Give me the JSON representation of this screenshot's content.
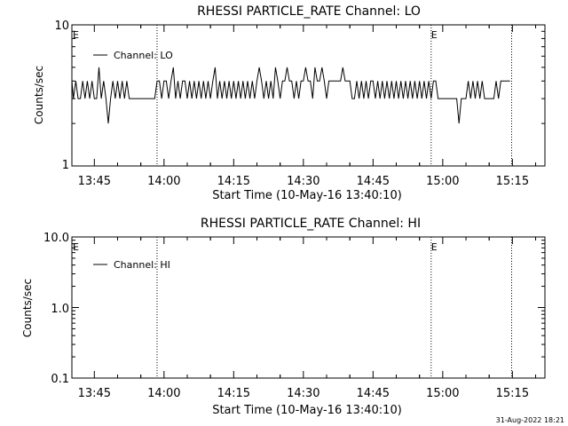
{
  "footer": {
    "timestamp": "31-Aug-2022 18:21"
  },
  "chart_data": [
    {
      "type": "line",
      "title": "RHESSI PARTICLE_RATE Channel: LO",
      "xlabel": "Start Time (10-May-16 13:40:10)",
      "ylabel": "Counts/sec",
      "yscale": "log",
      "ylim": [
        1,
        10
      ],
      "yticks": [
        "1",
        "10"
      ],
      "xlim": [
        "13:40:10",
        "15:22"
      ],
      "xticks": [
        "13:45",
        "14:00",
        "14:15",
        "14:30",
        "14:45",
        "15:00",
        "15:15"
      ],
      "legend": {
        "placement": "top-left",
        "entries": [
          "Channel: LO"
        ]
      },
      "markers": [
        {
          "time": "13:40:10",
          "label": "E",
          "line": false
        },
        {
          "time": "13:58:30",
          "label": "",
          "line": true
        },
        {
          "time": "14:57:30",
          "label": "E",
          "line": true
        },
        {
          "time": "15:14:50",
          "label": "",
          "line": true
        }
      ],
      "series": [
        {
          "name": "Channel: LO",
          "t": [
            "13:40:10",
            "13:40:30",
            "13:41:00",
            "13:41:30",
            "13:42:00",
            "13:42:30",
            "13:43:00",
            "13:43:30",
            "13:44:00",
            "13:44:30",
            "13:45:00",
            "13:45:30",
            "13:46:00",
            "13:46:30",
            "13:47:00",
            "13:47:30",
            "13:48:00",
            "13:48:30",
            "13:49:00",
            "13:49:30",
            "13:50:00",
            "13:50:30",
            "13:51:00",
            "13:51:30",
            "13:52:00",
            "13:52:30",
            "13:53:00",
            "13:53:30",
            "13:54:00",
            "13:55:00",
            "13:56:00",
            "13:57:00",
            "13:58:00",
            "13:58:30",
            "13:59:00",
            "13:59:30",
            "14:00:00",
            "14:00:30",
            "14:01:00",
            "14:01:30",
            "14:02:00",
            "14:02:30",
            "14:03:00",
            "14:03:30",
            "14:04:00",
            "14:04:30",
            "14:05:00",
            "14:05:30",
            "14:06:00",
            "14:06:30",
            "14:07:00",
            "14:07:30",
            "14:08:00",
            "14:08:30",
            "14:09:00",
            "14:09:30",
            "14:10:00",
            "14:10:30",
            "14:11:00",
            "14:11:30",
            "14:12:00",
            "14:12:30",
            "14:13:00",
            "14:13:30",
            "14:14:00",
            "14:14:30",
            "14:15:00",
            "14:15:30",
            "14:16:00",
            "14:16:30",
            "14:17:00",
            "14:17:30",
            "14:18:00",
            "14:18:30",
            "14:19:00",
            "14:19:30",
            "14:20:00",
            "14:20:30",
            "14:21:00",
            "14:21:30",
            "14:22:00",
            "14:22:30",
            "14:23:00",
            "14:23:30",
            "14:24:00",
            "14:24:30",
            "14:25:00",
            "14:25:30",
            "14:26:00",
            "14:26:30",
            "14:27:00",
            "14:27:30",
            "14:28:00",
            "14:28:30",
            "14:29:00",
            "14:29:30",
            "14:30:00",
            "14:30:30",
            "14:31:00",
            "14:31:30",
            "14:32:00",
            "14:32:30",
            "14:33:00",
            "14:33:30",
            "14:34:00",
            "14:34:30",
            "14:35:00",
            "14:35:30",
            "14:36:00",
            "14:36:30",
            "14:37:00",
            "14:37:30",
            "14:38:00",
            "14:38:30",
            "14:39:00",
            "14:39:30",
            "14:40:00",
            "14:40:30",
            "14:41:00",
            "14:41:30",
            "14:42:00",
            "14:42:30",
            "14:43:00",
            "14:43:30",
            "14:44:00",
            "14:44:30",
            "14:45:00",
            "14:45:30",
            "14:46:00",
            "14:46:30",
            "14:47:00",
            "14:47:30",
            "14:48:00",
            "14:48:30",
            "14:49:00",
            "14:49:30",
            "14:50:00",
            "14:50:30",
            "14:51:00",
            "14:51:30",
            "14:52:00",
            "14:52:30",
            "14:53:00",
            "14:53:30",
            "14:54:00",
            "14:54:30",
            "14:55:00",
            "14:55:30",
            "14:56:00",
            "14:56:30",
            "14:57:00",
            "14:57:30",
            "14:58:00",
            "14:58:30",
            "14:59:00",
            "14:59:30",
            "15:00:00",
            "15:00:30",
            "15:01:00",
            "15:01:30",
            "15:02:00",
            "15:02:30",
            "15:03:00",
            "15:03:30",
            "15:04:00",
            "15:04:30",
            "15:05:00",
            "15:05:30",
            "15:06:00",
            "15:06:30",
            "15:07:00",
            "15:07:30",
            "15:08:00",
            "15:08:30",
            "15:09:00",
            "15:09:30",
            "15:10:00",
            "15:10:30",
            "15:11:00",
            "15:11:30",
            "15:12:00",
            "15:12:30",
            "15:13:00",
            "15:13:30",
            "15:14:00",
            "15:14:30"
          ],
          "values": [
            4,
            3,
            4,
            3,
            3,
            4,
            3,
            4,
            3,
            4,
            3,
            3,
            5,
            3,
            4,
            3,
            2,
            3,
            4,
            3,
            4,
            3,
            4,
            3,
            4,
            3,
            3,
            3,
            3,
            3,
            3,
            3,
            3,
            4,
            4,
            3,
            4,
            4,
            3,
            4,
            5,
            3,
            4,
            3,
            4,
            4,
            3,
            4,
            3,
            4,
            3,
            4,
            3,
            4,
            3,
            4,
            3,
            4,
            5,
            3,
            4,
            3,
            4,
            3,
            4,
            3,
            4,
            3,
            4,
            3,
            4,
            3,
            4,
            3,
            4,
            3,
            4,
            5,
            4,
            3,
            4,
            3,
            4,
            3,
            5,
            4,
            3,
            4,
            4,
            5,
            4,
            4,
            3,
            4,
            3,
            4,
            4,
            5,
            4,
            4,
            3,
            5,
            4,
            4,
            5,
            4,
            3,
            4,
            4,
            4,
            4,
            4,
            4,
            5,
            4,
            4,
            4,
            3,
            3,
            4,
            3,
            4,
            3,
            4,
            3,
            4,
            4,
            3,
            4,
            3,
            4,
            3,
            4,
            3,
            4,
            3,
            4,
            3,
            4,
            3,
            4,
            3,
            4,
            3,
            4,
            3,
            4,
            3,
            4,
            3,
            4,
            3,
            4,
            4,
            3,
            3,
            3,
            3,
            3,
            3,
            3,
            3,
            3,
            2,
            3,
            3,
            3,
            4,
            3,
            4,
            3,
            4,
            3,
            4,
            3,
            3,
            3,
            3,
            3,
            4,
            3,
            4,
            4,
            4,
            4,
            4
          ]
        }
      ]
    },
    {
      "type": "line",
      "title": "RHESSI PARTICLE_RATE Channel: HI",
      "xlabel": "Start Time (10-May-16 13:40:10)",
      "ylabel": "Counts/sec",
      "yscale": "log",
      "ylim": [
        0.1,
        10
      ],
      "yticks": [
        "0.1",
        "1.0",
        "10.0"
      ],
      "xlim": [
        "13:40:10",
        "15:22"
      ],
      "xticks": [
        "13:45",
        "14:00",
        "14:15",
        "14:30",
        "14:45",
        "15:00",
        "15:15"
      ],
      "legend": {
        "placement": "top-left",
        "entries": [
          "Channel: HI"
        ]
      },
      "markers": [
        {
          "time": "13:40:10",
          "label": "E",
          "line": false
        },
        {
          "time": "13:58:30",
          "label": "",
          "line": true
        },
        {
          "time": "14:57:30",
          "label": "E",
          "line": true
        },
        {
          "time": "15:14:50",
          "label": "",
          "line": true
        }
      ],
      "series": [
        {
          "name": "Channel: HI",
          "t": [],
          "values": []
        }
      ]
    }
  ]
}
